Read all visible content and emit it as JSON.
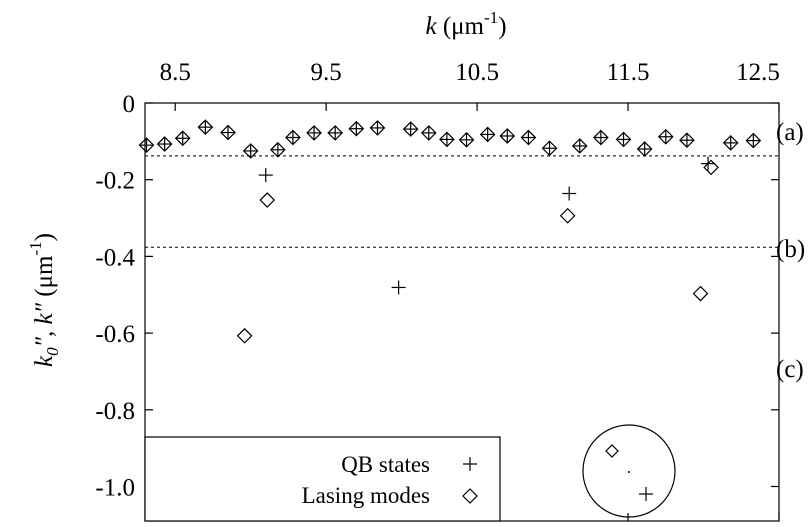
{
  "chart_data": {
    "type": "scatter",
    "title": "",
    "xlabel": "k (μm⁻¹)",
    "ylabel": "k0″, k″ (μm⁻¹)",
    "x_axis_position": "top",
    "xlim": [
      8.3,
      12.5
    ],
    "ylim": [
      -1.09,
      0.0
    ],
    "xticks": [
      "8.5",
      "9.5",
      "10.5",
      "11.5",
      "12.5"
    ],
    "yticks": [
      "0",
      "-0.2",
      "-0.4",
      "-0.6",
      "-0.8",
      "-1.0"
    ],
    "grid": false,
    "legend_position": "bottom-left",
    "series": [
      {
        "name": "QB states",
        "marker": "plus",
        "points": [
          [
            8.31,
            -0.11
          ],
          [
            8.43,
            -0.107
          ],
          [
            8.55,
            -0.092
          ],
          [
            8.7,
            -0.063
          ],
          [
            8.85,
            -0.077
          ],
          [
            9.0,
            -0.125
          ],
          [
            9.1,
            -0.188
          ],
          [
            9.18,
            -0.122
          ],
          [
            9.28,
            -0.09
          ],
          [
            9.42,
            -0.078
          ],
          [
            9.56,
            -0.078
          ],
          [
            9.7,
            -0.067
          ],
          [
            9.84,
            -0.065
          ],
          [
            9.98,
            -0.481
          ],
          [
            10.06,
            -0.068
          ],
          [
            10.18,
            -0.078
          ],
          [
            10.3,
            -0.095
          ],
          [
            10.43,
            -0.096
          ],
          [
            10.57,
            -0.082
          ],
          [
            10.7,
            -0.086
          ],
          [
            10.84,
            -0.09
          ],
          [
            10.98,
            -0.118
          ],
          [
            11.11,
            -0.236
          ],
          [
            11.18,
            -0.112
          ],
          [
            11.32,
            -0.09
          ],
          [
            11.47,
            -0.095
          ],
          [
            11.61,
            -0.12
          ],
          [
            11.75,
            -0.088
          ],
          [
            11.89,
            -0.097
          ],
          [
            12.03,
            -0.158
          ],
          [
            12.18,
            -0.104
          ],
          [
            12.33,
            -0.098
          ]
        ]
      },
      {
        "name": "Lasing modes",
        "marker": "diamond",
        "points": [
          [
            8.31,
            -0.11
          ],
          [
            8.43,
            -0.107
          ],
          [
            8.55,
            -0.092
          ],
          [
            8.7,
            -0.063
          ],
          [
            8.85,
            -0.077
          ],
          [
            9.0,
            -0.125
          ],
          [
            9.11,
            -0.253
          ],
          [
            9.18,
            -0.122
          ],
          [
            9.28,
            -0.09
          ],
          [
            9.42,
            -0.078
          ],
          [
            9.56,
            -0.078
          ],
          [
            9.7,
            -0.067
          ],
          [
            9.84,
            -0.065
          ],
          [
            10.06,
            -0.068
          ],
          [
            10.18,
            -0.078
          ],
          [
            10.3,
            -0.095
          ],
          [
            10.43,
            -0.096
          ],
          [
            10.57,
            -0.082
          ],
          [
            10.7,
            -0.086
          ],
          [
            10.84,
            -0.09
          ],
          [
            10.98,
            -0.118
          ],
          [
            11.1,
            -0.294
          ],
          [
            11.18,
            -0.112
          ],
          [
            11.32,
            -0.09
          ],
          [
            11.47,
            -0.095
          ],
          [
            11.61,
            -0.12
          ],
          [
            11.75,
            -0.088
          ],
          [
            11.89,
            -0.097
          ],
          [
            11.98,
            -0.497
          ],
          [
            12.05,
            -0.168
          ],
          [
            12.18,
            -0.104
          ],
          [
            12.33,
            -0.098
          ],
          [
            8.96,
            -0.607
          ]
        ]
      }
    ],
    "reference_lines": [
      {
        "y": -0.138,
        "style": "dashed"
      },
      {
        "y": -0.376,
        "style": "dashed"
      }
    ],
    "region_labels": [
      "(a)",
      "(b)",
      "(c)"
    ],
    "inset": {
      "shape": "circle",
      "markers": [
        "diamond",
        "dot",
        "plus"
      ]
    }
  }
}
